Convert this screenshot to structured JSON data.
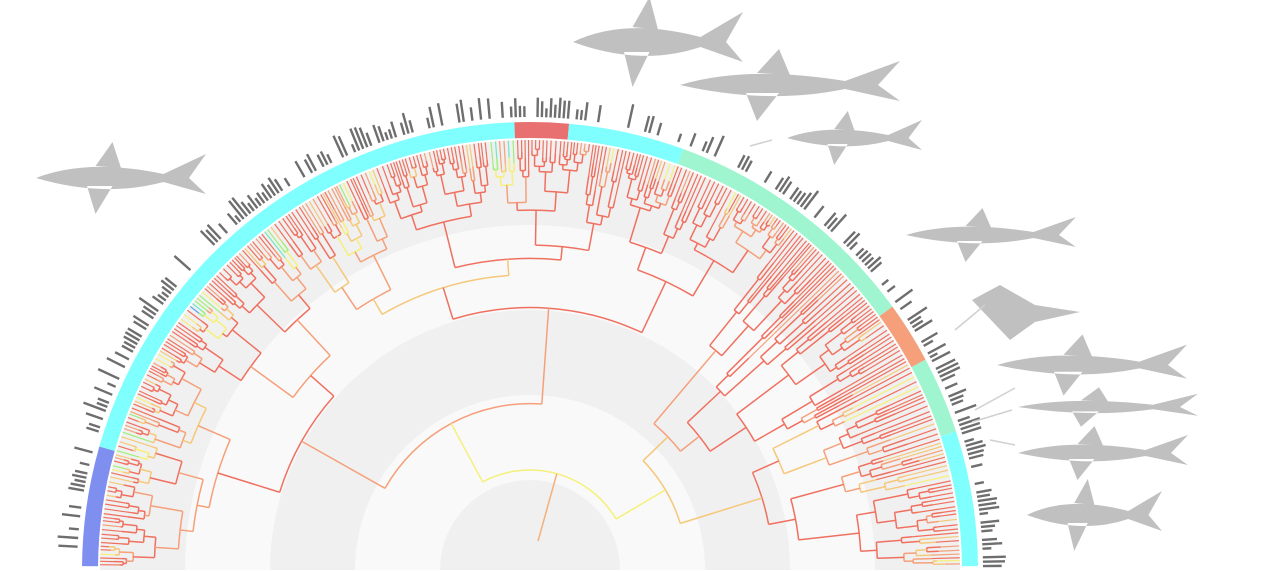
{
  "colors": {
    "background": "#ffffff",
    "band_light": "#f9f9f9",
    "band_dark": "#f0f0f0",
    "trait_bar": "#6e6e6e",
    "silhouette": "#c0c0c0",
    "branch_spectrum": [
      "#6f6ff0",
      "#5aa0f0",
      "#6ee8c8",
      "#9ef07a",
      "#f5f07a",
      "#f5c87a",
      "#f5a07a",
      "#f07060"
    ]
  },
  "clade_ring": [
    {
      "color": "#7f8ff0"
    },
    {
      "color": "#80ffff"
    },
    {
      "color": "#e87070"
    },
    {
      "color": "#80ffff"
    },
    {
      "color": "#9ff5d0"
    },
    {
      "color": "#f5a07a"
    },
    {
      "color": "#9ff5d0"
    },
    {
      "color": "#80ffff"
    }
  ],
  "silhouettes": [
    {
      "icon": "shark-silhouette-icon"
    },
    {
      "icon": "shark-silhouette-icon"
    },
    {
      "icon": "shark-silhouette-icon"
    },
    {
      "icon": "shark-silhouette-icon"
    },
    {
      "icon": "shark-silhouette-icon"
    },
    {
      "icon": "ray-silhouette-icon"
    },
    {
      "icon": "shark-silhouette-icon"
    },
    {
      "icon": "sawshark-silhouette-icon"
    },
    {
      "icon": "shark-silhouette-icon"
    },
    {
      "icon": "angelshark-silhouette-icon"
    }
  ]
}
